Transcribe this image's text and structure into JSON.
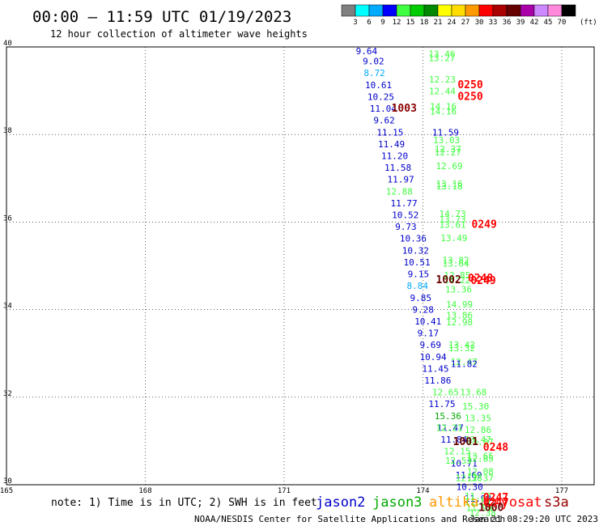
{
  "header": {
    "title": "00:00 – 11:59 UTC 01/19/2023",
    "subtitle": "12 hour collection of altimeter wave heights"
  },
  "legend": {
    "unit": "(ft)",
    "bins": [
      {
        "label": "3",
        "color": "#7f7f7f"
      },
      {
        "label": "6",
        "color": "#00ffff"
      },
      {
        "label": "9",
        "color": "#00aaff"
      },
      {
        "label": "12",
        "color": "#0000ff"
      },
      {
        "label": "15",
        "color": "#40ff40"
      },
      {
        "label": "18",
        "color": "#00cc00"
      },
      {
        "label": "21",
        "color": "#008800"
      },
      {
        "label": "24",
        "color": "#ffff00"
      },
      {
        "label": "27",
        "color": "#ffdd00"
      },
      {
        "label": "30",
        "color": "#ff9900"
      },
      {
        "label": "33",
        "color": "#ff0000"
      },
      {
        "label": "36",
        "color": "#aa0000"
      },
      {
        "label": "39",
        "color": "#660000"
      },
      {
        "label": "42",
        "color": "#aa00aa"
      },
      {
        "label": "45",
        "color": "#cc88ff"
      },
      {
        "label": "70",
        "color": "#ff88dd"
      },
      {
        "label": "",
        "color": "#000000"
      }
    ]
  },
  "note": "note: 1) Time is in UTC; 2) SWH is in feet",
  "satellites": [
    {
      "name": "jason2",
      "color": "#0000cc"
    },
    {
      "name": "jason3",
      "color": "#00aa00"
    },
    {
      "name": "altika",
      "color": "#ff9900"
    },
    {
      "name": "cryosat",
      "color": "#ff0000"
    },
    {
      "name": "s3a",
      "color": "#990000"
    }
  ],
  "footer": {
    "credit": "NOAA/NESDIS Center for Satellite Applications and Research",
    "timestamp": "Jan 21 08:29:20 UTC 2023"
  },
  "chart_data": {
    "type": "scatter",
    "xlim": [
      165,
      177.7
    ],
    "ylim": [
      30,
      40
    ],
    "x_ticks": [
      "165",
      "168",
      "171",
      "174",
      "177"
    ],
    "y_ticks": [
      "30",
      "32",
      "34",
      "36",
      "38",
      "40"
    ],
    "grid": true,
    "observations": [
      {
        "lon": 172.55,
        "lat": 39.83,
        "v": "9.64",
        "c": "#0000cc"
      },
      {
        "lon": 172.7,
        "lat": 39.6,
        "v": "9.02",
        "c": "#0000cc"
      },
      {
        "lon": 172.72,
        "lat": 39.33,
        "v": "8.72",
        "c": "#00aaff"
      },
      {
        "lon": 172.75,
        "lat": 39.06,
        "v": "10.61",
        "c": "#0000cc"
      },
      {
        "lon": 172.8,
        "lat": 38.79,
        "v": "10.25",
        "c": "#0000cc"
      },
      {
        "lon": 172.85,
        "lat": 38.52,
        "v": "11.04",
        "c": "#0000cc"
      },
      {
        "lon": 172.93,
        "lat": 38.25,
        "v": "9.62",
        "c": "#0000cc"
      },
      {
        "lon": 173.0,
        "lat": 37.98,
        "v": "11.15",
        "c": "#0000cc"
      },
      {
        "lon": 173.03,
        "lat": 37.71,
        "v": "11.49",
        "c": "#0000cc"
      },
      {
        "lon": 173.1,
        "lat": 37.44,
        "v": "11.20",
        "c": "#0000cc"
      },
      {
        "lon": 173.17,
        "lat": 37.17,
        "v": "11.58",
        "c": "#0000cc"
      },
      {
        "lon": 173.23,
        "lat": 36.9,
        "v": "11.97",
        "c": "#0000cc"
      },
      {
        "lon": 173.2,
        "lat": 36.63,
        "v": "12.88",
        "c": "#40ff40"
      },
      {
        "lon": 173.3,
        "lat": 36.36,
        "v": "11.77",
        "c": "#0000cc"
      },
      {
        "lon": 173.33,
        "lat": 36.09,
        "v": "10.52",
        "c": "#0000cc"
      },
      {
        "lon": 173.4,
        "lat": 35.82,
        "v": "9.73",
        "c": "#0000cc"
      },
      {
        "lon": 173.5,
        "lat": 35.55,
        "v": "10.36",
        "c": "#0000cc"
      },
      {
        "lon": 173.55,
        "lat": 35.28,
        "v": "10.32",
        "c": "#0000cc"
      },
      {
        "lon": 173.58,
        "lat": 35.01,
        "v": "10.51",
        "c": "#0000cc"
      },
      {
        "lon": 173.67,
        "lat": 34.74,
        "v": "9.15",
        "c": "#0000cc"
      },
      {
        "lon": 173.65,
        "lat": 34.47,
        "v": "8.84",
        "c": "#00aaff"
      },
      {
        "lon": 173.72,
        "lat": 34.2,
        "v": "9.85",
        "c": "#0000cc"
      },
      {
        "lon": 173.77,
        "lat": 33.93,
        "v": "9.28",
        "c": "#0000cc"
      },
      {
        "lon": 173.82,
        "lat": 33.66,
        "v": "10.41",
        "c": "#0000cc"
      },
      {
        "lon": 173.88,
        "lat": 33.39,
        "v": "9.17",
        "c": "#0000cc"
      },
      {
        "lon": 173.93,
        "lat": 33.12,
        "v": "9.69",
        "c": "#0000cc"
      },
      {
        "lon": 173.93,
        "lat": 32.85,
        "v": "10.94",
        "c": "#0000cc"
      },
      {
        "lon": 173.98,
        "lat": 32.58,
        "v": "11.45",
        "c": "#0000cc"
      },
      {
        "lon": 174.03,
        "lat": 32.31,
        "v": "11.86",
        "c": "#0000cc"
      },
      {
        "lon": 174.12,
        "lat": 31.77,
        "v": "11.75",
        "c": "#0000cc"
      },
      {
        "lon": 174.3,
        "lat": 31.23,
        "v": "11.47",
        "c": "#0000cc"
      },
      {
        "lon": 174.38,
        "lat": 30.96,
        "v": "11.84",
        "c": "#0000cc"
      },
      {
        "lon": 174.6,
        "lat": 30.42,
        "v": "10.71",
        "c": "#0000cc"
      },
      {
        "lon": 174.7,
        "lat": 30.15,
        "v": "11.69",
        "c": "#0000cc"
      },
      {
        "lon": 174.72,
        "lat": 29.88,
        "v": "10.30",
        "c": "#0000cc"
      },
      {
        "lon": 174.9,
        "lat": 29.61,
        "v": "11.98",
        "c": "#0000cc"
      },
      {
        "lon": 174.12,
        "lat": 39.77,
        "v": "13.46",
        "c": "#40ff40"
      },
      {
        "lon": 174.12,
        "lat": 39.68,
        "v": "13.27",
        "c": "#40ff40"
      },
      {
        "lon": 174.13,
        "lat": 39.19,
        "v": "12.23",
        "c": "#40ff40"
      },
      {
        "lon": 174.13,
        "lat": 38.92,
        "v": "12.44",
        "c": "#40ff40"
      },
      {
        "lon": 174.15,
        "lat": 38.57,
        "v": "14.16",
        "c": "#40ff40"
      },
      {
        "lon": 174.15,
        "lat": 38.46,
        "v": "14.16",
        "c": "#40ff40"
      },
      {
        "lon": 174.2,
        "lat": 37.98,
        "v": "11.59",
        "c": "#0000cc"
      },
      {
        "lon": 174.22,
        "lat": 37.8,
        "v": "13.03",
        "c": "#40ff40"
      },
      {
        "lon": 174.25,
        "lat": 37.6,
        "v": "12.37",
        "c": "#40ff40"
      },
      {
        "lon": 174.25,
        "lat": 37.52,
        "v": "12.27",
        "c": "#40ff40"
      },
      {
        "lon": 174.28,
        "lat": 37.21,
        "v": "12.69",
        "c": "#40ff40"
      },
      {
        "lon": 174.28,
        "lat": 36.8,
        "v": "13.16",
        "c": "#40ff40"
      },
      {
        "lon": 174.28,
        "lat": 36.75,
        "v": "13.18",
        "c": "#40ff40"
      },
      {
        "lon": 174.35,
        "lat": 36.12,
        "v": "14.73",
        "c": "#40ff40"
      },
      {
        "lon": 174.35,
        "lat": 35.99,
        "v": "13.73",
        "c": "#40ff40"
      },
      {
        "lon": 174.35,
        "lat": 35.87,
        "v": "13.61",
        "c": "#40ff40"
      },
      {
        "lon": 174.38,
        "lat": 35.56,
        "v": "13.49",
        "c": "#40ff40"
      },
      {
        "lon": 174.42,
        "lat": 35.06,
        "v": "13.82",
        "c": "#40ff40"
      },
      {
        "lon": 174.42,
        "lat": 34.98,
        "v": "13.64",
        "c": "#40ff40"
      },
      {
        "lon": 174.45,
        "lat": 34.71,
        "v": "12.85",
        "c": "#40ff40"
      },
      {
        "lon": 174.45,
        "lat": 34.6,
        "v": "14.22",
        "c": "#40ff40"
      },
      {
        "lon": 174.48,
        "lat": 34.39,
        "v": "13.36",
        "c": "#40ff40"
      },
      {
        "lon": 174.5,
        "lat": 34.05,
        "v": "14.99",
        "c": "#40ff40"
      },
      {
        "lon": 174.5,
        "lat": 33.8,
        "v": "13.86",
        "c": "#40ff40"
      },
      {
        "lon": 174.5,
        "lat": 33.64,
        "v": "12.98",
        "c": "#40ff40"
      },
      {
        "lon": 174.55,
        "lat": 33.12,
        "v": "13.42",
        "c": "#40ff40"
      },
      {
        "lon": 174.55,
        "lat": 33.05,
        "v": "13.32",
        "c": "#40ff40"
      },
      {
        "lon": 174.6,
        "lat": 32.74,
        "v": "12.47",
        "c": "#40ff40"
      },
      {
        "lon": 174.6,
        "lat": 32.69,
        "v": "11.82",
        "c": "#0000cc"
      },
      {
        "lon": 174.2,
        "lat": 32.04,
        "v": "12.65",
        "c": "#40ff40"
      },
      {
        "lon": 174.8,
        "lat": 32.04,
        "v": "13.68",
        "c": "#40ff40"
      },
      {
        "lon": 174.85,
        "lat": 31.72,
        "v": "15.30",
        "c": "#40ff40"
      },
      {
        "lon": 174.25,
        "lat": 31.5,
        "v": "15.36",
        "c": "#00aa00"
      },
      {
        "lon": 174.9,
        "lat": 31.45,
        "v": "13.35",
        "c": "#40ff40"
      },
      {
        "lon": 174.28,
        "lat": 31.23,
        "v": "12.21",
        "c": "#40ff40"
      },
      {
        "lon": 174.9,
        "lat": 31.18,
        "v": "12.86",
        "c": "#40ff40"
      },
      {
        "lon": 174.9,
        "lat": 30.96,
        "v": "13.47",
        "c": "#40ff40"
      },
      {
        "lon": 174.95,
        "lat": 30.91,
        "v": "13.07",
        "c": "#40ff40"
      },
      {
        "lon": 174.45,
        "lat": 30.69,
        "v": "12.15",
        "c": "#40ff40"
      },
      {
        "lon": 174.95,
        "lat": 30.58,
        "v": "13.65",
        "c": "#40ff40"
      },
      {
        "lon": 174.95,
        "lat": 30.53,
        "v": "12.85",
        "c": "#40ff40"
      },
      {
        "lon": 174.48,
        "lat": 30.48,
        "v": "12.53",
        "c": "#40ff40"
      },
      {
        "lon": 174.95,
        "lat": 30.23,
        "v": "12.08",
        "c": "#40ff40"
      },
      {
        "lon": 174.7,
        "lat": 30.08,
        "v": "12.38",
        "c": "#40ff40"
      },
      {
        "lon": 174.95,
        "lat": 30.08,
        "v": "12.37",
        "c": "#40ff40"
      },
      {
        "lon": 174.9,
        "lat": 29.67,
        "v": "11.22",
        "c": "#40ff40"
      },
      {
        "lon": 174.9,
        "lat": 29.54,
        "v": "11.81",
        "c": "#40ff40"
      },
      {
        "lon": 174.93,
        "lat": 29.4,
        "v": "11.99",
        "c": "#40ff40"
      },
      {
        "lon": 175.0,
        "lat": 29.29,
        "v": "12.38",
        "c": "#40ff40"
      }
    ],
    "flags": [
      {
        "lon": 173.32,
        "lat": 38.52,
        "v": "1003",
        "c": "#880000"
      },
      {
        "lon": 174.75,
        "lat": 39.06,
        "v": "0250",
        "c": "#ff0000"
      },
      {
        "lon": 174.75,
        "lat": 38.79,
        "v": "0250",
        "c": "#ff0000"
      },
      {
        "lon": 175.05,
        "lat": 35.87,
        "v": "0249",
        "c": "#ff0000"
      },
      {
        "lon": 174.28,
        "lat": 34.6,
        "v": "1002",
        "c": "#660000"
      },
      {
        "lon": 174.97,
        "lat": 34.64,
        "v": "0248",
        "c": "#ff0000"
      },
      {
        "lon": 175.03,
        "lat": 34.58,
        "v": "0249",
        "c": "#ff0000"
      },
      {
        "lon": 175.3,
        "lat": 30.78,
        "v": "0248",
        "c": "#ff0000"
      },
      {
        "lon": 174.65,
        "lat": 30.91,
        "v": "1001",
        "c": "#660000"
      },
      {
        "lon": 175.3,
        "lat": 29.63,
        "v": "0247",
        "c": "#ff0000"
      },
      {
        "lon": 175.3,
        "lat": 29.52,
        "v": "0247",
        "c": "#ff0000"
      },
      {
        "lon": 175.2,
        "lat": 29.4,
        "v": "1000",
        "c": "#660000"
      }
    ]
  }
}
